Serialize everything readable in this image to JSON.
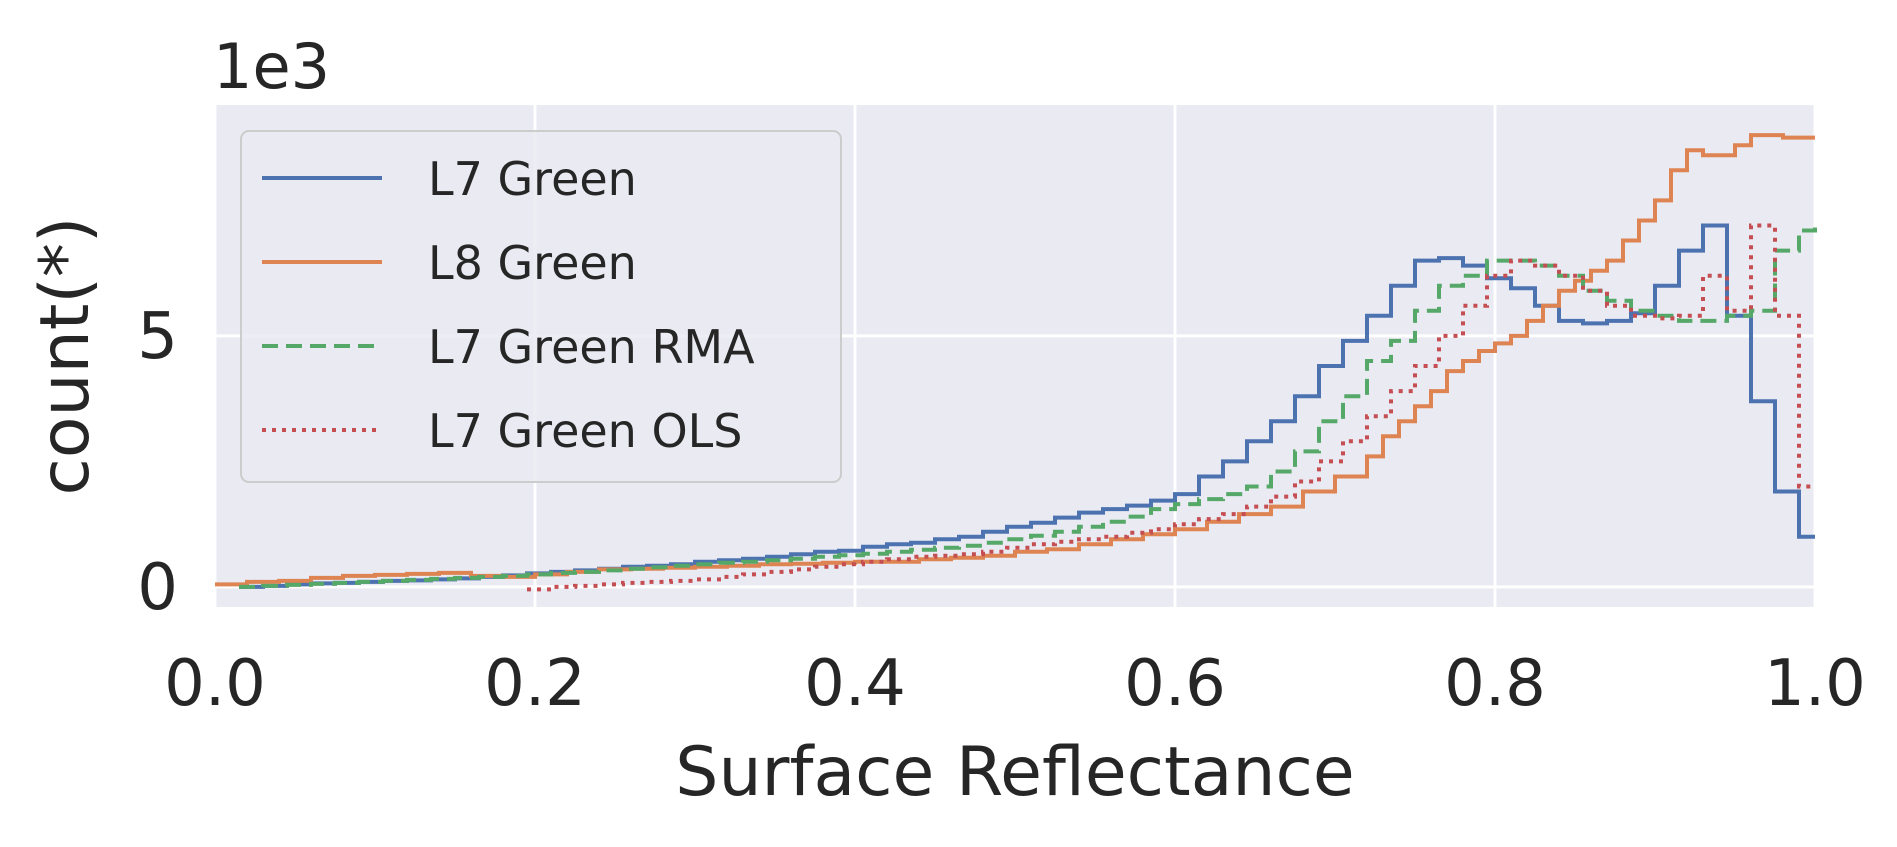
{
  "chart_data": {
    "type": "line",
    "subtype": "step-histogram",
    "title": "",
    "xlabel": "Surface Reflectance",
    "ylabel": "count(*)",
    "y_offset_label": "1e3",
    "xlim": [
      0.0,
      1.0
    ],
    "ylim": [
      -0.4,
      9.6
    ],
    "y_unit_scale": 1000,
    "xticks": [
      0.0,
      0.2,
      0.4,
      0.6,
      0.8,
      1.0
    ],
    "xtick_labels": [
      "0.0",
      "0.2",
      "0.4",
      "0.6",
      "0.8",
      "1.0"
    ],
    "yticks": [
      0,
      5
    ],
    "ytick_labels": [
      "0",
      "5"
    ],
    "grid": true,
    "style": "seaborn-darkgrid",
    "legend_position": "upper-left",
    "series": [
      {
        "name": "L7 Green",
        "color": "#4c72b0",
        "dash": "solid",
        "x": [
          0.015,
          0.03,
          0.045,
          0.06,
          0.075,
          0.09,
          0.105,
          0.12,
          0.135,
          0.15,
          0.165,
          0.18,
          0.195,
          0.21,
          0.225,
          0.24,
          0.255,
          0.27,
          0.285,
          0.3,
          0.315,
          0.33,
          0.345,
          0.36,
          0.375,
          0.39,
          0.405,
          0.42,
          0.435,
          0.45,
          0.465,
          0.48,
          0.495,
          0.51,
          0.525,
          0.54,
          0.555,
          0.57,
          0.585,
          0.6,
          0.615,
          0.63,
          0.645,
          0.66,
          0.675,
          0.69,
          0.705,
          0.72,
          0.735,
          0.75,
          0.765,
          0.78,
          0.795,
          0.81,
          0.825,
          0.84,
          0.855,
          0.87,
          0.885,
          0.9,
          0.915,
          0.93,
          0.945,
          0.96,
          0.975,
          0.99,
          1.0
        ],
        "y": [
          0.0,
          0.02,
          0.05,
          0.07,
          0.08,
          0.1,
          0.12,
          0.13,
          0.15,
          0.17,
          0.2,
          0.23,
          0.27,
          0.3,
          0.33,
          0.36,
          0.4,
          0.42,
          0.45,
          0.5,
          0.53,
          0.56,
          0.6,
          0.65,
          0.7,
          0.72,
          0.8,
          0.85,
          0.88,
          0.95,
          1.0,
          1.1,
          1.2,
          1.28,
          1.38,
          1.48,
          1.55,
          1.62,
          1.72,
          1.85,
          2.2,
          2.5,
          2.9,
          3.3,
          3.8,
          4.4,
          4.9,
          5.4,
          6.0,
          6.5,
          6.55,
          6.4,
          6.15,
          5.95,
          5.6,
          5.3,
          5.25,
          5.3,
          5.45,
          6.0,
          6.7,
          7.2,
          5.4,
          3.7,
          1.9,
          1.0,
          1.0
        ]
      },
      {
        "name": "L8 Green",
        "color": "#dd8452",
        "dash": "solid",
        "x": [
          0.0,
          0.02,
          0.04,
          0.06,
          0.08,
          0.1,
          0.12,
          0.14,
          0.16,
          0.18,
          0.2,
          0.22,
          0.24,
          0.26,
          0.28,
          0.3,
          0.32,
          0.34,
          0.36,
          0.38,
          0.4,
          0.42,
          0.44,
          0.46,
          0.48,
          0.5,
          0.52,
          0.54,
          0.56,
          0.58,
          0.6,
          0.62,
          0.64,
          0.66,
          0.68,
          0.7,
          0.72,
          0.73,
          0.74,
          0.75,
          0.76,
          0.77,
          0.78,
          0.79,
          0.8,
          0.81,
          0.82,
          0.83,
          0.84,
          0.85,
          0.86,
          0.87,
          0.88,
          0.89,
          0.9,
          0.91,
          0.92,
          0.93,
          0.94,
          0.95,
          0.96,
          0.97,
          0.98,
          0.99,
          1.0
        ],
        "y": [
          0.05,
          0.1,
          0.12,
          0.18,
          0.22,
          0.24,
          0.26,
          0.28,
          0.22,
          0.2,
          0.25,
          0.3,
          0.35,
          0.36,
          0.38,
          0.4,
          0.42,
          0.45,
          0.46,
          0.48,
          0.5,
          0.5,
          0.55,
          0.58,
          0.62,
          0.7,
          0.75,
          0.85,
          0.95,
          1.05,
          1.15,
          1.3,
          1.45,
          1.6,
          1.9,
          2.2,
          2.6,
          3.0,
          3.3,
          3.6,
          3.9,
          4.3,
          4.5,
          4.7,
          4.85,
          5.0,
          5.3,
          5.6,
          5.9,
          6.1,
          6.3,
          6.5,
          6.9,
          7.3,
          7.7,
          8.3,
          8.7,
          8.6,
          8.6,
          8.8,
          9.0,
          9.0,
          8.95,
          8.95,
          8.95
        ]
      },
      {
        "name": "L7 Green RMA",
        "color": "#55a868",
        "dash": "dashed",
        "x": [
          0.015,
          0.03,
          0.045,
          0.06,
          0.075,
          0.09,
          0.105,
          0.12,
          0.135,
          0.15,
          0.165,
          0.18,
          0.195,
          0.21,
          0.225,
          0.24,
          0.255,
          0.27,
          0.285,
          0.3,
          0.315,
          0.33,
          0.345,
          0.36,
          0.375,
          0.39,
          0.405,
          0.42,
          0.435,
          0.45,
          0.465,
          0.48,
          0.495,
          0.51,
          0.525,
          0.54,
          0.555,
          0.57,
          0.585,
          0.6,
          0.615,
          0.63,
          0.645,
          0.66,
          0.675,
          0.69,
          0.705,
          0.72,
          0.735,
          0.75,
          0.765,
          0.78,
          0.795,
          0.81,
          0.825,
          0.84,
          0.855,
          0.87,
          0.885,
          0.9,
          0.915,
          0.93,
          0.945,
          0.96,
          0.975,
          0.99,
          1.0
        ],
        "y": [
          0.0,
          0.02,
          0.04,
          0.06,
          0.08,
          0.1,
          0.12,
          0.14,
          0.16,
          0.18,
          0.2,
          0.22,
          0.25,
          0.28,
          0.3,
          0.33,
          0.36,
          0.39,
          0.42,
          0.45,
          0.48,
          0.5,
          0.53,
          0.56,
          0.6,
          0.63,
          0.66,
          0.7,
          0.74,
          0.78,
          0.82,
          0.88,
          0.95,
          1.02,
          1.1,
          1.2,
          1.3,
          1.4,
          1.55,
          1.65,
          1.75,
          1.85,
          2.0,
          2.3,
          2.7,
          3.3,
          3.8,
          4.5,
          4.9,
          5.5,
          6.0,
          6.2,
          6.5,
          6.5,
          6.4,
          6.2,
          5.9,
          5.7,
          5.5,
          5.4,
          5.3,
          5.3,
          5.4,
          5.5,
          6.7,
          7.1,
          7.2
        ]
      },
      {
        "name": "L7 Green OLS",
        "color": "#c44e52",
        "dash": "dotted",
        "x": [
          0.195,
          0.21,
          0.225,
          0.24,
          0.255,
          0.27,
          0.285,
          0.3,
          0.315,
          0.33,
          0.345,
          0.36,
          0.375,
          0.39,
          0.405,
          0.42,
          0.435,
          0.45,
          0.465,
          0.48,
          0.495,
          0.51,
          0.525,
          0.54,
          0.555,
          0.57,
          0.585,
          0.6,
          0.615,
          0.63,
          0.645,
          0.66,
          0.675,
          0.69,
          0.705,
          0.72,
          0.735,
          0.75,
          0.765,
          0.78,
          0.795,
          0.81,
          0.825,
          0.84,
          0.855,
          0.87,
          0.885,
          0.9,
          0.915,
          0.93,
          0.945,
          0.96,
          0.975,
          0.99,
          1.0
        ],
        "y": [
          -0.05,
          0.0,
          0.02,
          0.05,
          0.08,
          0.1,
          0.12,
          0.15,
          0.2,
          0.25,
          0.3,
          0.35,
          0.4,
          0.45,
          0.5,
          0.55,
          0.6,
          0.62,
          0.65,
          0.7,
          0.78,
          0.85,
          0.9,
          0.95,
          1.0,
          1.08,
          1.15,
          1.25,
          1.35,
          1.45,
          1.6,
          1.8,
          2.1,
          2.5,
          2.9,
          3.4,
          3.9,
          4.4,
          5.0,
          5.6,
          6.2,
          6.5,
          6.4,
          6.2,
          5.9,
          5.6,
          5.4,
          5.35,
          5.4,
          6.2,
          5.5,
          7.2,
          5.4,
          2.0,
          2.0
        ]
      }
    ]
  }
}
